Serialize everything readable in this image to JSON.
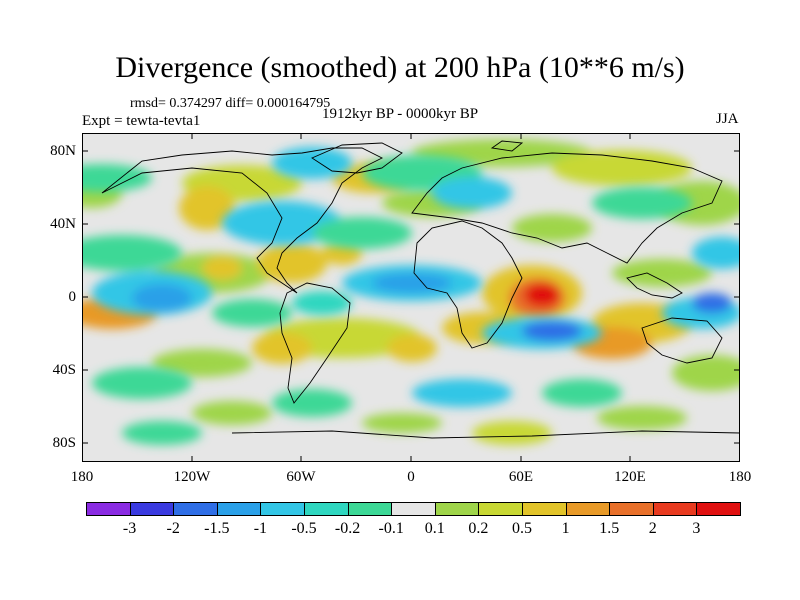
{
  "title": "Divergence (smoothed) at 200 hPa (10**6 m/s)",
  "stats": "rmsd= 0.374297 diff= 0.000164795",
  "experiment": "Expt = tewta-tevta1",
  "period": "1912kyr BP - 0000kyr BP",
  "season": "JJA",
  "axes": {
    "y_ticks": [
      "80N",
      "40N",
      "0",
      "40S",
      "80S"
    ],
    "x_ticks": [
      "180",
      "120W",
      "60W",
      "0",
      "60E",
      "120E",
      "180"
    ]
  },
  "colorbar": {
    "labels": [
      "-3",
      "-2",
      "-1.5",
      "-1",
      "-0.5",
      "-0.2",
      "-0.1",
      "0.1",
      "0.2",
      "0.5",
      "1",
      "1.5",
      "2",
      "3"
    ],
    "colors": [
      "#8a2be2",
      "#3a3ae0",
      "#2f6ee6",
      "#2aa0e8",
      "#33c6e6",
      "#2fd7c0",
      "#3cd896",
      "#e6e6e6",
      "#9fd54a",
      "#c8d834",
      "#e2c42a",
      "#e89a28",
      "#e8702a",
      "#e83a1f",
      "#e01010"
    ]
  },
  "palette": {
    "background": "#e6e6e6",
    "coast": "#000000"
  }
}
